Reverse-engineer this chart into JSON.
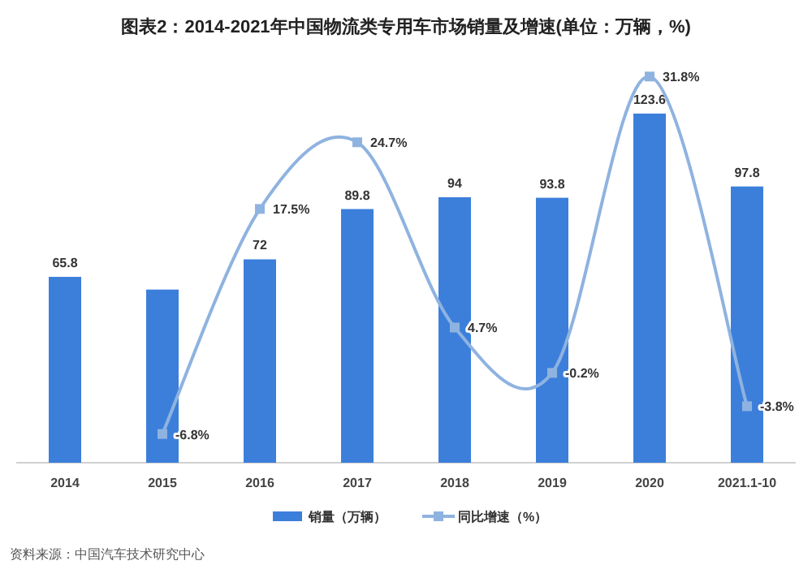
{
  "chart_data": {
    "type": "bar",
    "title": "图表2：2014-2021年中国物流类专用车市场销量及增速(单位：万辆，%)",
    "categories": [
      "2014",
      "2015",
      "2016",
      "2017",
      "2018",
      "2019",
      "2020",
      "2021.1-10"
    ],
    "series": [
      {
        "name": "销量（万辆）",
        "color": "#3c7fdb",
        "values": [
          65.8,
          61.3,
          72,
          89.8,
          94,
          93.8,
          123.6,
          97.8
        ],
        "value_labels": [
          "65.8",
          null,
          "72",
          "89.8",
          "94",
          "93.8",
          "123.6",
          "97.8"
        ]
      },
      {
        "name": "同比增速（%）",
        "type": "line",
        "axis": "y2",
        "color": "#8fb3e0",
        "marker": "square",
        "values": [
          null,
          -6.8,
          17.5,
          24.7,
          4.7,
          -0.2,
          31.8,
          -3.8
        ],
        "value_labels": [
          null,
          "-6.8%",
          "17.5%",
          "24.7%",
          "4.7%",
          "-0.2%",
          "31.8%",
          "-3.8%"
        ]
      }
    ],
    "legend": "bottom",
    "grid": false,
    "annotations": [
      "资料来源：中国汽车技术研究中心"
    ]
  }
}
